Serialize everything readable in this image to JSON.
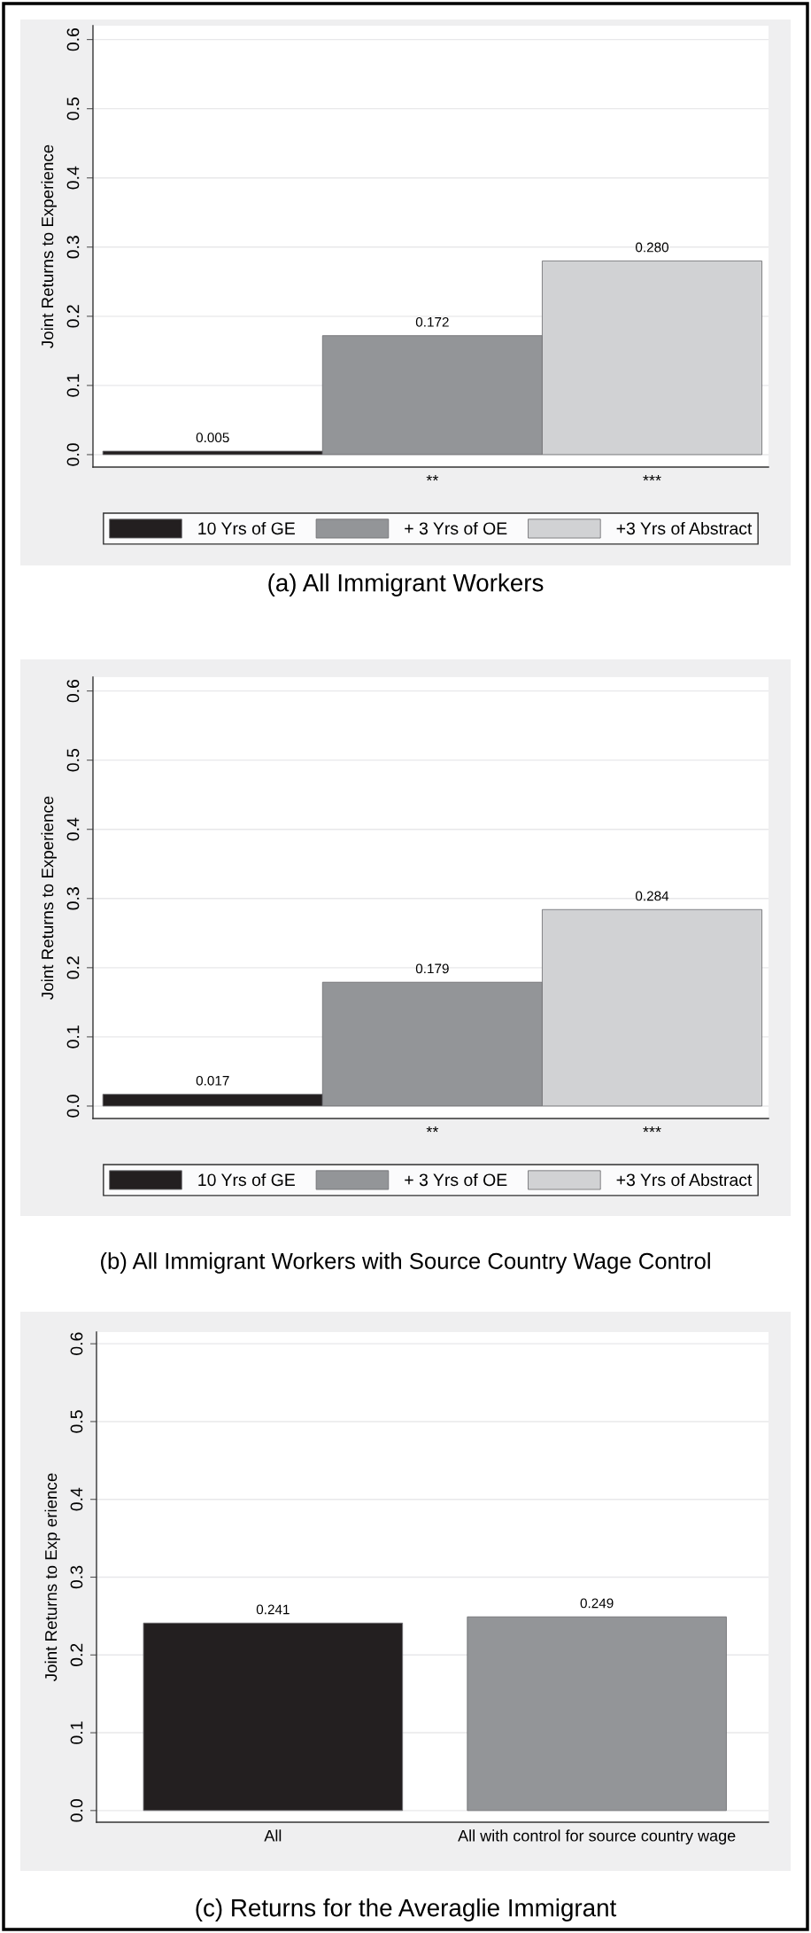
{
  "chart_data": [
    {
      "type": "bar",
      "title": "(a) All Immigrant Workers",
      "ylabel": "Joint Returns to Experience",
      "categories": [
        null,
        "**",
        "***"
      ],
      "series": [
        {
          "name": "10 Yrs of GE",
          "color": "#231f20",
          "values": [
            0.005,
            null,
            null
          ],
          "value_labels": [
            "0.005",
            null,
            null
          ]
        },
        {
          "name": "+ 3 Yrs of OE",
          "color": "#939598",
          "values": [
            null,
            0.172,
            null
          ],
          "value_labels": [
            null,
            "0.172",
            null
          ]
        },
        {
          "name": "+3 Yrs of Abstract",
          "color": "#d1d2d4",
          "values": [
            null,
            null,
            0.28
          ],
          "value_labels": [
            null,
            null,
            "0.280"
          ]
        }
      ],
      "ylim": [
        -0.018,
        0.62
      ],
      "yticks": [
        {
          "value": 0,
          "label": "0.0"
        },
        {
          "value": 0.1,
          "label": "0.1"
        },
        {
          "value": 0.2,
          "label": "0.2"
        },
        {
          "value": 0.3,
          "label": "0.3"
        },
        {
          "value": 0.4,
          "label": "0.4"
        },
        {
          "value": 0.5,
          "label": "0.5"
        },
        {
          "value": 0.6,
          "label": "0.6"
        }
      ],
      "grid": "y",
      "legend": "bottom"
    },
    {
      "type": "bar",
      "title": "(b) All Immigrant Workers with Source Country Wage Control",
      "ylabel": "Joint Returns to Experience",
      "categories": [
        null,
        "**",
        "***"
      ],
      "series": [
        {
          "name": "10 Yrs of GE",
          "color": "#231f20",
          "values": [
            0.017,
            null,
            null
          ],
          "value_labels": [
            "0.017",
            null,
            null
          ]
        },
        {
          "name": "+ 3 Yrs of OE",
          "color": "#939598",
          "values": [
            null,
            0.179,
            null
          ],
          "value_labels": [
            null,
            "0.179",
            null
          ]
        },
        {
          "name": "+3 Yrs of Abstract",
          "color": "#d1d2d4",
          "values": [
            null,
            null,
            0.284
          ],
          "value_labels": [
            null,
            null,
            "0.284"
          ]
        }
      ],
      "ylim": [
        -0.018,
        0.62
      ],
      "yticks": [
        {
          "value": 0,
          "label": "0.0"
        },
        {
          "value": 0.1,
          "label": "0.1"
        },
        {
          "value": 0.2,
          "label": "0.2"
        },
        {
          "value": 0.3,
          "label": "0.3"
        },
        {
          "value": 0.4,
          "label": "0.4"
        },
        {
          "value": 0.5,
          "label": "0.5"
        },
        {
          "value": 0.6,
          "label": "0.6"
        }
      ],
      "grid": "y",
      "legend": "bottom"
    },
    {
      "type": "bar",
      "title": "(c) Returns for the Averaglie Immigrant",
      "ylabel": "Joint Returns to Exp erience",
      "categories": [
        "All",
        "All with control for source country wage"
      ],
      "values": [
        0.241,
        0.249
      ],
      "colors": [
        "#231f20",
        "#939598"
      ],
      "value_labels": [
        "0.241",
        "0.249"
      ],
      "ylim": [
        -0.015,
        0.615
      ],
      "yticks": [
        {
          "value": 0,
          "label": "0.0"
        },
        {
          "value": 0.1,
          "label": "0.1"
        },
        {
          "value": 0.2,
          "label": "0.2"
        },
        {
          "value": 0.3,
          "label": "0.3"
        },
        {
          "value": 0.4,
          "label": "0.4"
        },
        {
          "value": 0.5,
          "label": "0.5"
        },
        {
          "value": 0.6,
          "label": "0.6"
        }
      ],
      "grid": "y"
    }
  ]
}
